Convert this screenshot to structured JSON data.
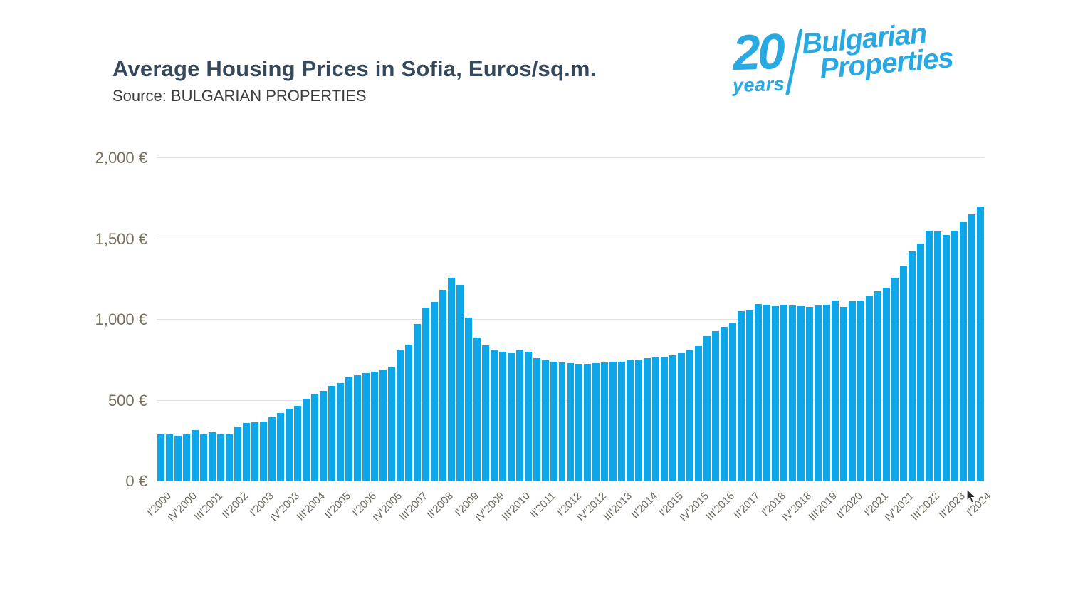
{
  "header": {
    "title": "Average Housing Prices in Sofia, Euros/sq.m.",
    "source": "Source: BULGARIAN PROPERTIES"
  },
  "logo": {
    "number": "20",
    "years": "years",
    "brand_line1": "Bulgarian",
    "brand_line2": "Properties"
  },
  "colors": {
    "bar": "#0da6e8",
    "title_text": "#36485c",
    "source_text": "#3d3d3d",
    "y_label": "#78705f",
    "x_label": "#6e685e",
    "gridline": "#e2e2e2",
    "baseline": "#c8c8c8",
    "logo_blue": "#29a9e1",
    "background": "#ffffff"
  },
  "chart_data": {
    "type": "bar",
    "title": "Average Housing Prices in Sofia, Euros/sq.m.",
    "source": "Source: BULGARIAN PROPERTIES",
    "ylabel": "",
    "xlabel": "",
    "ylim": [
      0,
      2000
    ],
    "grid": true,
    "legend": false,
    "x_tick_step": 3,
    "y_ticks": [
      {
        "value": 2000,
        "label": "2,000 €"
      },
      {
        "value": 1500,
        "label": "1,500 €"
      },
      {
        "value": 1000,
        "label": "1,000 €"
      },
      {
        "value": 500,
        "label": "500 €"
      },
      {
        "value": 0,
        "label": "0 €"
      }
    ],
    "x": [
      "I'2000",
      "II'2000",
      "III'2000",
      "IV'2000",
      "I'2001",
      "II'2001",
      "III'2001",
      "IV'2001",
      "I'2002",
      "II'2002",
      "III'2002",
      "IV'2002",
      "I'2003",
      "II'2003",
      "III'2003",
      "IV'2003",
      "I'2004",
      "II'2004",
      "III'2004",
      "IV'2004",
      "I'2005",
      "II'2005",
      "III'2005",
      "IV'2005",
      "I'2006",
      "II'2006",
      "III'2006",
      "IV'2006",
      "I'2007",
      "II'2007",
      "III'2007",
      "IV'2007",
      "I'2008",
      "II'2008",
      "III'2008",
      "IV'2008",
      "I'2009",
      "II'2009",
      "III'2009",
      "IV'2009",
      "I'2010",
      "II'2010",
      "III'2010",
      "IV'2010",
      "I'2011",
      "II'2011",
      "III'2011",
      "IV'2011",
      "I'2012",
      "II'2012",
      "III'2012",
      "IV'2012",
      "I'2013",
      "II'2013",
      "III'2013",
      "IV'2013",
      "I'2014",
      "II'2014",
      "III'2014",
      "IV'2014",
      "I'2015",
      "II'2015",
      "III'2015",
      "IV'2015",
      "I'2016",
      "II'2016",
      "III'2016",
      "IV'2016",
      "I'2017",
      "II'2017",
      "III'2017",
      "IV'2017",
      "I'2018",
      "II'2018",
      "III'2018",
      "IV'2018",
      "I'2019",
      "II'2019",
      "III'2019",
      "IV'2019",
      "I'2020",
      "II'2020",
      "III'2020",
      "IV'2020",
      "I'2021",
      "II'2021",
      "III'2021",
      "IV'2021",
      "I'2022",
      "II'2022",
      "III'2022",
      "IV'2022",
      "I'2023",
      "II'2023",
      "III'2023",
      "IV'2023",
      "I'2024"
    ],
    "values": [
      290,
      290,
      283,
      293,
      318,
      290,
      303,
      290,
      293,
      340,
      362,
      366,
      370,
      398,
      425,
      451,
      469,
      513,
      543,
      561,
      590,
      609,
      642,
      656,
      671,
      680,
      690,
      709,
      810,
      845,
      975,
      1075,
      1110,
      1185,
      1262,
      1215,
      1015,
      889,
      840,
      810,
      800,
      793,
      815,
      800,
      760,
      750,
      742,
      736,
      731,
      726,
      728,
      731,
      734,
      738,
      742,
      747,
      753,
      760,
      768,
      772,
      778,
      794,
      812,
      835,
      900,
      929,
      958,
      984,
      1055,
      1058,
      1095,
      1091,
      1085,
      1091,
      1088,
      1085,
      1080,
      1088,
      1091,
      1117,
      1080,
      1113,
      1120,
      1150,
      1175,
      1200,
      1260,
      1334,
      1424,
      1471,
      1552,
      1545,
      1523,
      1552,
      1604,
      1651,
      1700
    ]
  }
}
